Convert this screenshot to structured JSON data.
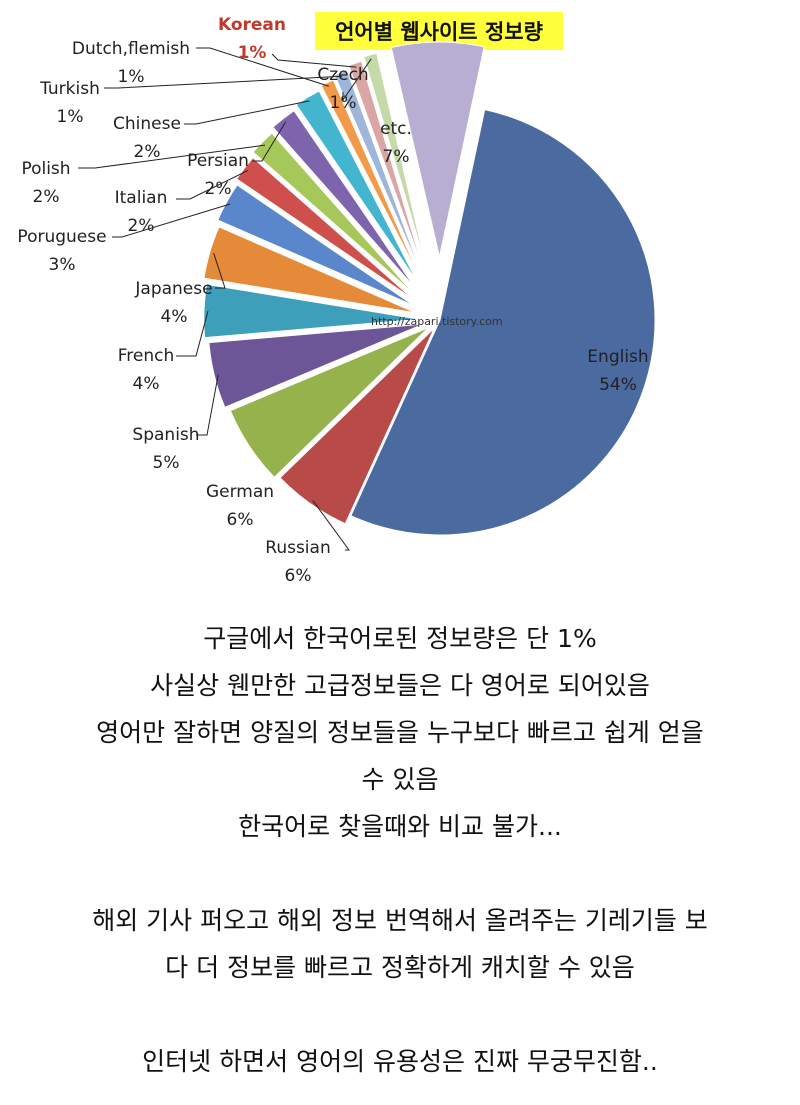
{
  "chart_data": {
    "type": "pie",
    "title": "언어별 웹사이트 정보량",
    "watermark": "http://zapari.tistory.com",
    "highlight_label": "Korean",
    "slices": [
      {
        "label": "English",
        "pct_text": "54%",
        "value": 54,
        "color": "#4a6aa0"
      },
      {
        "label": "Russian",
        "pct_text": "6%",
        "value": 6,
        "color": "#b84a48"
      },
      {
        "label": "German",
        "pct_text": "6%",
        "value": 6,
        "color": "#95b24c"
      },
      {
        "label": "Spanish",
        "pct_text": "5%",
        "value": 5,
        "color": "#6d5698"
      },
      {
        "label": "French",
        "pct_text": "4%",
        "value": 4,
        "color": "#3e9fbb"
      },
      {
        "label": "Japanese",
        "pct_text": "4%",
        "value": 4,
        "color": "#e48a38"
      },
      {
        "label": "Poruguese",
        "pct_text": "3%",
        "value": 3,
        "color": "#5a86cc"
      },
      {
        "label": "Italian",
        "pct_text": "2%",
        "value": 2,
        "color": "#cf4f4c"
      },
      {
        "label": "Polish",
        "pct_text": "2%",
        "value": 2,
        "color": "#a6c75a"
      },
      {
        "label": "Persian",
        "pct_text": "2%",
        "value": 2,
        "color": "#7e64ad"
      },
      {
        "label": "Chinese",
        "pct_text": "2%",
        "value": 2,
        "color": "#44b5cf"
      },
      {
        "label": "Dutch,flemish",
        "pct_text": "1%",
        "value": 1,
        "color": "#f19a4a"
      },
      {
        "label": "Turkish",
        "pct_text": "1%",
        "value": 1,
        "color": "#9fb6db"
      },
      {
        "label": "Korean",
        "pct_text": "1%",
        "value": 1,
        "color": "#d9a6a4"
      },
      {
        "label": "Czech",
        "pct_text": "1%",
        "value": 1,
        "color": "#c6d9a8"
      },
      {
        "label": "etc.",
        "pct_text": "7%",
        "value": 7,
        "color": "#b8aed1"
      }
    ]
  },
  "caption": {
    "lines": [
      "구글에서 한국어로된 정보량은 단 1%",
      "사실상 웬만한 고급정보들은 다 영어로 되어있음",
      "영어만 잘하면 양질의 정보들을 누구보다 빠르고 쉽게 얻을",
      "수 있음",
      "한국어로 찾을때와 비교 불가...",
      "",
      "해외 기사 퍼오고 해외 정보 번역해서 올려주는 기레기들 보",
      "다 더 정보를 빠르고 정확하게 캐치할 수 있음",
      "",
      "인터넷 하면서 영어의 유용성은 진짜 무궁무진함.."
    ]
  }
}
